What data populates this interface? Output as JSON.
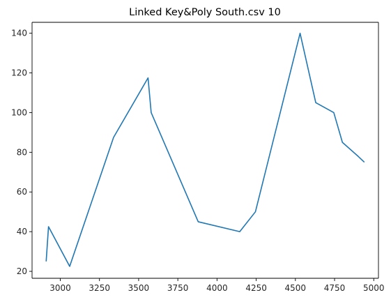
{
  "chart_data": {
    "type": "line",
    "title": "Linked Key&Poly South.csv 10",
    "xlabel": "",
    "ylabel": "",
    "xlim": [
      2820,
      5030
    ],
    "ylim": [
      16.5,
      145.5
    ],
    "x_ticks": [
      3000,
      3250,
      3500,
      3750,
      4000,
      4250,
      4500,
      4750,
      5000
    ],
    "y_ticks": [
      20,
      40,
      60,
      80,
      100,
      120,
      140
    ],
    "grid": false,
    "legend": "none",
    "line_color": "#1f77b4",
    "series": [
      {
        "x": [
          2910,
          2925,
          3060,
          3340,
          3560,
          3580,
          3880,
          4145,
          4245,
          4530,
          4630,
          4745,
          4800,
          4900,
          4940
        ],
        "y": [
          25,
          42.5,
          22.5,
          87.5,
          117.5,
          100,
          45,
          40,
          50,
          140,
          105,
          100,
          85,
          78,
          75
        ]
      }
    ]
  }
}
